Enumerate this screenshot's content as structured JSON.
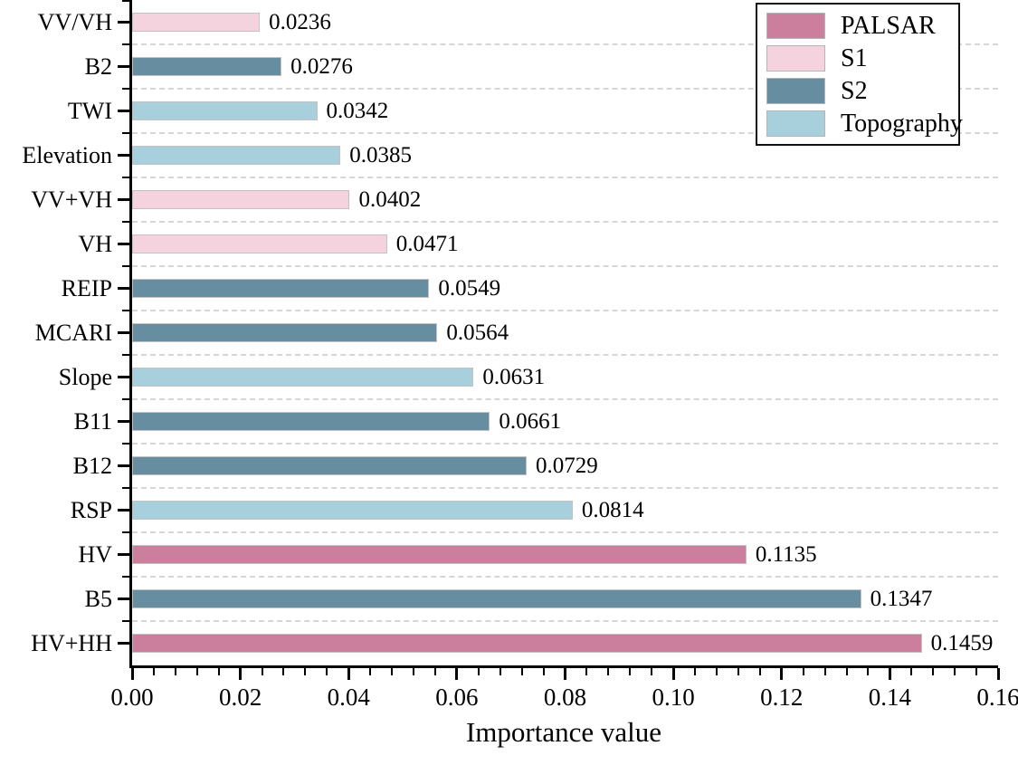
{
  "figure": {
    "background": "#ffffff",
    "axis_color": "#000000",
    "gridline_color": "#d6d6d6"
  },
  "chart_data": {
    "type": "bar",
    "orientation": "horizontal",
    "title": "",
    "xlabel": "Importance value",
    "ylabel": "",
    "xlim": [
      0,
      0.16
    ],
    "xtick_labels": [
      "0.00",
      "0.02",
      "0.04",
      "0.06",
      "0.08",
      "0.10",
      "0.12",
      "0.14",
      "0.16"
    ],
    "x_minor_step": 0.004,
    "grid": {
      "style": "dashed",
      "axis": "y",
      "position": "category-boundaries"
    },
    "legend": {
      "position": "top-right",
      "entries": [
        {
          "label": "PALSAR",
          "color": "#cb7f9d"
        },
        {
          "label": "S1",
          "color": "#f4d3de"
        },
        {
          "label": "S2",
          "color": "#678da0"
        },
        {
          "label": "Topography",
          "color": "#a8cfdc"
        }
      ]
    },
    "bars_order": "top-to-bottom",
    "bars": [
      {
        "category": "VV/VH",
        "value": 0.0236,
        "label": "0.0236",
        "group": "S1"
      },
      {
        "category": "B2",
        "value": 0.0276,
        "label": "0.0276",
        "group": "S2"
      },
      {
        "category": "TWI",
        "value": 0.0342,
        "label": "0.0342",
        "group": "Topography"
      },
      {
        "category": "Elevation",
        "value": 0.0385,
        "label": "0.0385",
        "group": "Topography"
      },
      {
        "category": "VV+VH",
        "value": 0.0402,
        "label": "0.0402",
        "group": "S1"
      },
      {
        "category": "VH",
        "value": 0.0471,
        "label": "0.0471",
        "group": "S1"
      },
      {
        "category": "REIP",
        "value": 0.0549,
        "label": "0.0549",
        "group": "S2"
      },
      {
        "category": "MCARI",
        "value": 0.0564,
        "label": "0.0564",
        "group": "S2"
      },
      {
        "category": "Slope",
        "value": 0.0631,
        "label": "0.0631",
        "group": "Topography"
      },
      {
        "category": "B11",
        "value": 0.0661,
        "label": "0.0661",
        "group": "S2"
      },
      {
        "category": "B12",
        "value": 0.0729,
        "label": "0.0729",
        "group": "S2"
      },
      {
        "category": "RSP",
        "value": 0.0814,
        "label": "0.0814",
        "group": "Topography"
      },
      {
        "category": "HV",
        "value": 0.1135,
        "label": "0.1135",
        "group": "PALSAR"
      },
      {
        "category": "B5",
        "value": 0.1347,
        "label": "0.1347",
        "group": "S2"
      },
      {
        "category": "HV+HH",
        "value": 0.1459,
        "label": "0.1459",
        "group": "PALSAR"
      }
    ]
  }
}
